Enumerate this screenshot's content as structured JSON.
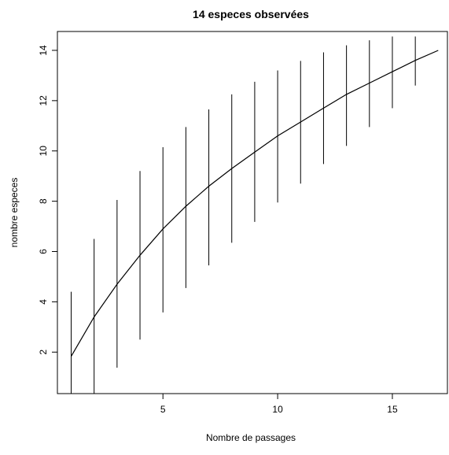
{
  "chart_data": {
    "type": "line",
    "title": "14 especes observées",
    "xlabel": "Nombre de passages",
    "ylabel": "nombre especes",
    "xlim": [
      0.4,
      17.4
    ],
    "ylim": [
      0.35,
      14.75
    ],
    "x_ticks": [
      5,
      10,
      15
    ],
    "y_ticks": [
      2,
      4,
      6,
      8,
      10,
      12,
      14
    ],
    "grid": false,
    "legend": "none",
    "series": [
      {
        "x": [
          1,
          2,
          3,
          4,
          5,
          6,
          7,
          8,
          9,
          10,
          11,
          12,
          13,
          14,
          15,
          16,
          17
        ],
        "y": [
          1.83,
          3.4,
          4.7,
          5.85,
          6.9,
          7.8,
          8.6,
          9.3,
          9.95,
          10.6,
          11.15,
          11.7,
          12.25,
          12.7,
          13.15,
          13.6,
          14.0
        ]
      }
    ],
    "error_bars": [
      {
        "x": 1,
        "low": 0.35,
        "high": 4.4
      },
      {
        "x": 2,
        "low": 0.35,
        "high": 6.5
      },
      {
        "x": 3,
        "low": 1.38,
        "high": 8.05
      },
      {
        "x": 4,
        "low": 2.5,
        "high": 9.2
      },
      {
        "x": 5,
        "low": 3.58,
        "high": 10.15
      },
      {
        "x": 6,
        "low": 4.55,
        "high": 10.95
      },
      {
        "x": 7,
        "low": 5.45,
        "high": 11.65
      },
      {
        "x": 8,
        "low": 6.35,
        "high": 12.25
      },
      {
        "x": 9,
        "low": 7.18,
        "high": 12.75
      },
      {
        "x": 10,
        "low": 7.95,
        "high": 13.2
      },
      {
        "x": 11,
        "low": 8.7,
        "high": 13.58
      },
      {
        "x": 12,
        "low": 9.48,
        "high": 13.92
      },
      {
        "x": 13,
        "low": 10.2,
        "high": 14.2
      },
      {
        "x": 14,
        "low": 10.95,
        "high": 14.4
      },
      {
        "x": 15,
        "low": 11.7,
        "high": 14.55
      },
      {
        "x": 16,
        "low": 12.6,
        "high": 14.55
      }
    ],
    "colors": {
      "line": "#000000",
      "axis": "#000000",
      "background": "#ffffff"
    }
  }
}
